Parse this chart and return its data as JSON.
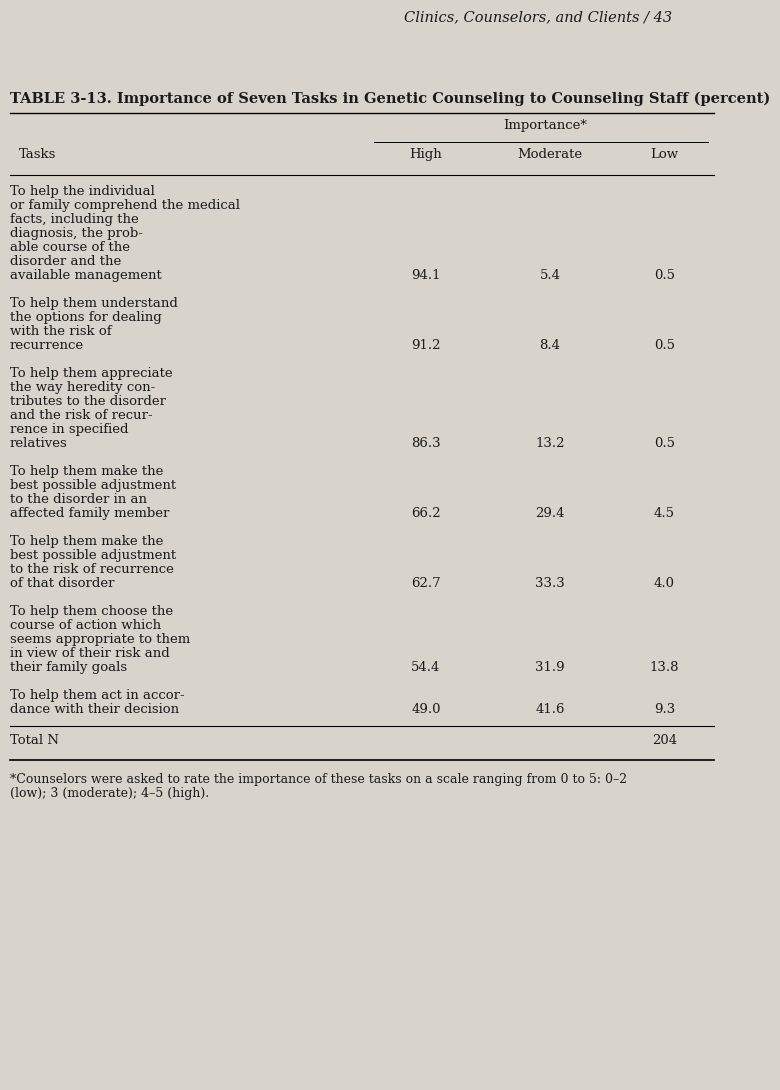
{
  "page_header": "Clinics, Counselors, and Clients / 43",
  "table_title": "TABLE 3-13. Importance of Seven Tasks in Genetic Counseling to Counseling Staff (percent)",
  "col_header_importance": "Importance*",
  "col_tasks": "Tasks",
  "col_high": "High",
  "col_moderate": "Moderate",
  "col_low": "Low",
  "rows": [
    {
      "task_lines": [
        "To help the individual",
        "or family comprehend the medical",
        "facts, including the",
        "diagnosis, the prob-",
        "able course of the",
        "disorder and the",
        "available management"
      ],
      "high": "94.1",
      "moderate": "5.4",
      "low": "0.5"
    },
    {
      "task_lines": [
        "To help them understand",
        "the options for dealing",
        "with the risk of",
        "recurrence"
      ],
      "high": "91.2",
      "moderate": "8.4",
      "low": "0.5"
    },
    {
      "task_lines": [
        "To help them appreciate",
        "the way heredity con-",
        "tributes to the disorder",
        "and the risk of recur-",
        "rence in specified",
        "relatives"
      ],
      "high": "86.3",
      "moderate": "13.2",
      "low": "0.5"
    },
    {
      "task_lines": [
        "To help them make the",
        "best possible adjustment",
        "to the disorder in an",
        "affected family member"
      ],
      "high": "66.2",
      "moderate": "29.4",
      "low": "4.5"
    },
    {
      "task_lines": [
        "To help them make the",
        "best possible adjustment",
        "to the risk of recurrence",
        "of that disorder"
      ],
      "high": "62.7",
      "moderate": "33.3",
      "low": "4.0"
    },
    {
      "task_lines": [
        "To help them choose the",
        "course of action which",
        "seems appropriate to them",
        "in view of their risk and",
        "their family goals"
      ],
      "high": "54.4",
      "moderate": "31.9",
      "low": "13.8"
    },
    {
      "task_lines": [
        "To help them act in accor-",
        "dance with their decision"
      ],
      "high": "49.0",
      "moderate": "41.6",
      "low": "9.3"
    }
  ],
  "total_label": "Total N",
  "total_value": "204",
  "footnote_line1": "*Counselors were asked to rate the importance of these tasks on a scale ranging from 0 to 5: 0–2",
  "footnote_line2": "(low); 3 (moderate); 4–5 (high).",
  "bg_color": "#d8d4cb",
  "text_color": "#1a1a1a",
  "header_fontsize": 9.5,
  "body_fontsize": 9.5,
  "title_fontsize": 10.5,
  "page_header_fontsize": 10.5
}
